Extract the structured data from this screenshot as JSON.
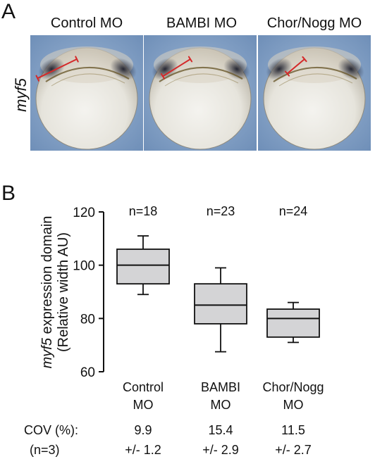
{
  "panel_a": {
    "letter": "A",
    "gene_label": "myf5",
    "columns": [
      {
        "title": "Control MO",
        "bracket_deg": 26,
        "bracket_len": 62
      },
      {
        "title": "BAMBI MO",
        "bracket_deg": 32,
        "bracket_len": 46
      },
      {
        "title": "Chor/Nogg MO",
        "bracket_deg": 40,
        "bracket_len": 32
      }
    ]
  },
  "panel_b": {
    "letter": "B",
    "ylabel_italic": "myf5",
    "ylabel_rest": " expression domain",
    "ylabel_line2": "(Relative width AU)",
    "cov_label": "COV (%):",
    "n_label": "(n=3)"
  },
  "chart_data": {
    "type": "box",
    "ylim": [
      60,
      120
    ],
    "yticks": [
      60,
      80,
      100,
      120
    ],
    "categories": [
      "Control MO",
      "BAMBI MO",
      "Chor/Nogg MO"
    ],
    "category_lines": [
      [
        "Control",
        "MO"
      ],
      [
        "BAMBI",
        "MO"
      ],
      [
        "Chor/Nogg",
        "MO"
      ]
    ],
    "n_labels": [
      "n=18",
      "n=23",
      "n=24"
    ],
    "boxes": [
      {
        "min": 89,
        "q1": 93,
        "median": 100,
        "q3": 106,
        "max": 111
      },
      {
        "min": 67.5,
        "q1": 78,
        "median": 85,
        "q3": 93,
        "max": 99
      },
      {
        "min": 71,
        "q1": 73,
        "median": 80,
        "q3": 83.5,
        "max": 86
      }
    ],
    "cov_values": [
      "9.9",
      "15.4",
      "11.5"
    ],
    "cov_errors": [
      "+/- 1.2",
      "+/- 2.9",
      "+/- 2.7"
    ],
    "box_color": "#d4d4d6",
    "line_color": "#111111"
  }
}
